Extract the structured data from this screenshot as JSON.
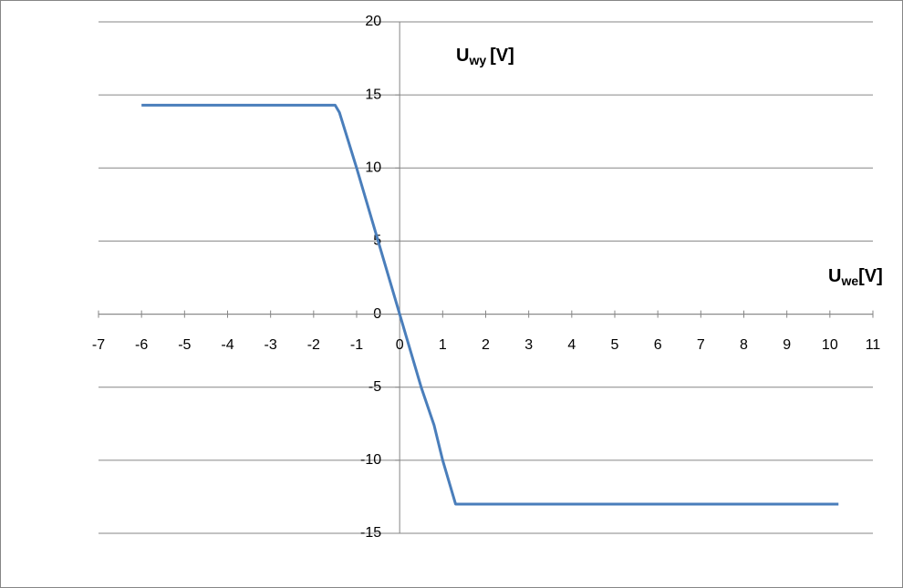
{
  "chart_data": {
    "type": "line",
    "annotations": [
      {
        "main": "U",
        "sub": "wy",
        "unit": "[V]"
      },
      {
        "main": "U",
        "sub": "we",
        "unit": "[V]"
      }
    ],
    "x": [
      -6,
      -1.8,
      -1.5,
      -1.4,
      -1,
      -0.5,
      0,
      0.5,
      0.8,
      1,
      1.3,
      1.4,
      10.2
    ],
    "series": [
      {
        "color": "#4a7ebb",
        "values": [
          14.3,
          14.3,
          14.3,
          13.8,
          10,
          5,
          0,
          -5,
          -7.6,
          -10,
          -13,
          -13,
          -13
        ]
      }
    ],
    "xlim": [
      -7,
      11
    ],
    "xticks": [
      -7,
      -6,
      -5,
      -4,
      -3,
      -2,
      -1,
      0,
      1,
      2,
      3,
      4,
      5,
      6,
      7,
      8,
      9,
      10,
      11
    ],
    "ylim": [
      -15,
      20
    ],
    "yticks": [
      -15,
      -10,
      -5,
      0,
      5,
      10,
      15,
      20
    ],
    "grid": true
  }
}
